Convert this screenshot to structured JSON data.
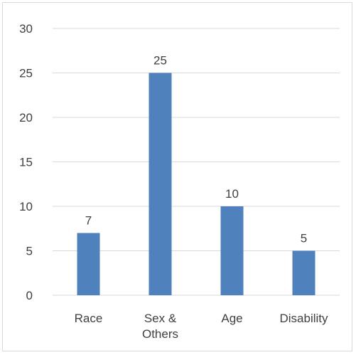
{
  "chart_data": {
    "type": "bar",
    "categories": [
      "Race",
      "Sex & Others",
      "Age",
      "Disability"
    ],
    "category_label_lines": [
      [
        "Race"
      ],
      [
        "Sex &",
        "Others"
      ],
      [
        "Age"
      ],
      [
        "Disability"
      ]
    ],
    "values": [
      7,
      25,
      10,
      5
    ],
    "data_labels": [
      "7",
      "25",
      "10",
      "5"
    ],
    "ylim": [
      0,
      30
    ],
    "yticks": [
      0,
      5,
      10,
      15,
      20,
      25,
      30
    ],
    "grid": true,
    "legend": "none",
    "title": "",
    "xlabel": "",
    "ylabel": "",
    "colors": {
      "bar": "#4f81bd",
      "grid": "#d9d9d9",
      "text": "#404040",
      "border": "#d9d9d9"
    }
  }
}
